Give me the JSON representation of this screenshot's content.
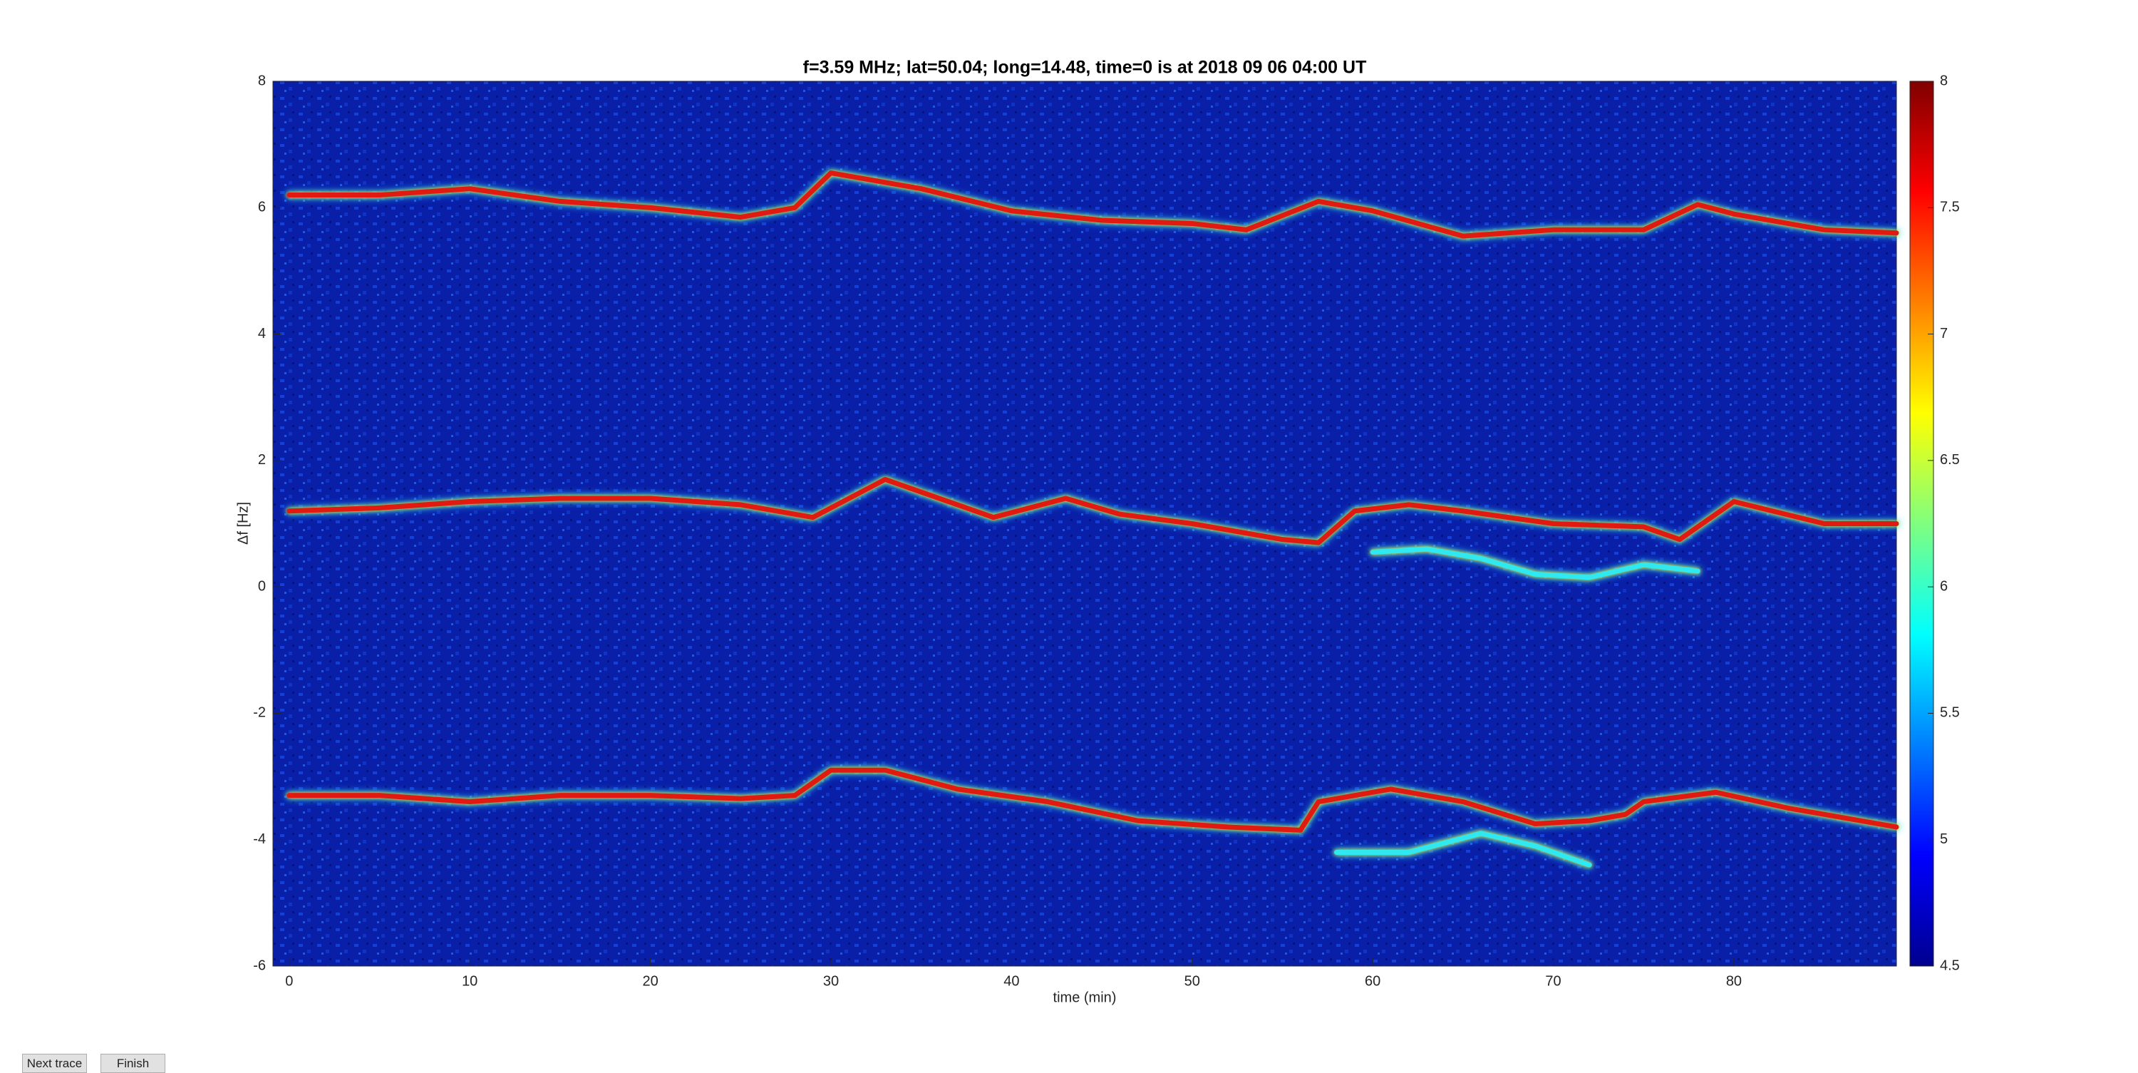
{
  "chart_data": {
    "type": "line",
    "title": "f=3.59 MHz;  lat=50.04; long=14.48, time=0 is at 2018 09 06 04:00 UT",
    "xlabel": "time (min)",
    "ylabel": "Δf [Hz]",
    "xlim": [
      -0.9,
      89
    ],
    "ylim": [
      -6,
      8
    ],
    "xticks": [
      0,
      10,
      20,
      30,
      40,
      50,
      60,
      70,
      80
    ],
    "yticks": [
      -6,
      -4,
      -2,
      0,
      2,
      4,
      6,
      8
    ],
    "colormap": "jet",
    "clim": [
      4.5,
      8
    ],
    "cticks": [
      4.5,
      5,
      5.5,
      6,
      6.5,
      7,
      7.5,
      8
    ],
    "series": [
      {
        "color": "#e01a10",
        "x": [
          0,
          5,
          10,
          15,
          20,
          25,
          28,
          30,
          35,
          40,
          45,
          50,
          53,
          57,
          60,
          65,
          70,
          75,
          78,
          80,
          85,
          89
        ],
        "values": [
          6.2,
          6.2,
          6.3,
          6.1,
          6.0,
          5.85,
          6.0,
          6.55,
          6.3,
          5.95,
          5.8,
          5.75,
          5.65,
          6.1,
          5.95,
          5.55,
          5.65,
          5.65,
          6.05,
          5.9,
          5.65,
          5.6
        ]
      },
      {
        "color": "#e01a10",
        "x": [
          0,
          5,
          10,
          15,
          20,
          25,
          29,
          33,
          37,
          39,
          43,
          46,
          50,
          55,
          57,
          59,
          62,
          65,
          70,
          75,
          77,
          80,
          85,
          89
        ],
        "values": [
          1.2,
          1.25,
          1.35,
          1.4,
          1.4,
          1.3,
          1.1,
          1.7,
          1.3,
          1.1,
          1.4,
          1.15,
          1.0,
          0.75,
          0.7,
          1.2,
          1.3,
          1.2,
          1.0,
          0.95,
          0.75,
          1.35,
          1.0,
          1.0
        ]
      },
      {
        "color": "#e01a10",
        "x": [
          0,
          5,
          10,
          15,
          20,
          25,
          28,
          30,
          33,
          37,
          42,
          47,
          52,
          56,
          57,
          61,
          65,
          69,
          72,
          74,
          75,
          79,
          83,
          89
        ],
        "values": [
          -3.3,
          -3.3,
          -3.4,
          -3.3,
          -3.3,
          -3.35,
          -3.3,
          -2.9,
          -2.9,
          -3.2,
          -3.4,
          -3.7,
          -3.8,
          -3.85,
          -3.4,
          -3.2,
          -3.4,
          -3.75,
          -3.7,
          -3.6,
          -3.4,
          -3.25,
          -3.5,
          -3.8
        ]
      },
      {
        "color": "#30e8f0",
        "x": [
          60,
          63,
          66,
          69,
          72,
          75,
          78
        ],
        "values": [
          0.55,
          0.6,
          0.45,
          0.2,
          0.15,
          0.35,
          0.25
        ]
      },
      {
        "color": "#30e8f0",
        "x": [
          58,
          62,
          66,
          69,
          72
        ],
        "values": [
          -4.2,
          -4.2,
          -3.9,
          -4.1,
          -4.4
        ]
      }
    ]
  },
  "buttons": [
    "Next trace",
    "Finish"
  ]
}
